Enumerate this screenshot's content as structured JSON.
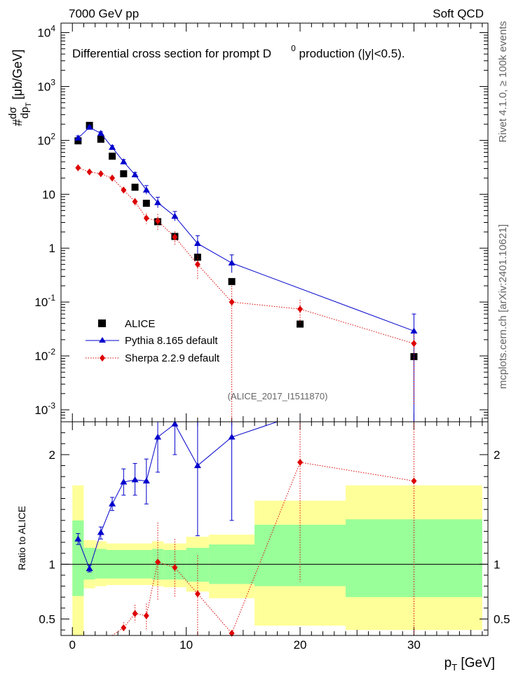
{
  "header": {
    "left": "7000 GeV pp",
    "right": "Soft QCD"
  },
  "side_labels": {
    "rivet": "Rivet 4.1.0, ≥ 100k events",
    "mcplots": "mcplots.cern.ch [arXiv:2401.10621]"
  },
  "colors": {
    "data": "#000000",
    "pythia": "#0000cc",
    "sherpa": "#dd0000",
    "band_inner": "#99ff99",
    "band_outer": "#ffff99"
  },
  "chart_data": {
    "type": "scatter",
    "title": "Differential cross section for prompt D^0 production (|y|<0.5).",
    "title_parts": {
      "before": "Differential cross section for prompt D",
      "sup": "0",
      "after": " production (|y|<0.5)."
    },
    "analysis_tag": "(ALICE_2017_I1511870)",
    "x_label": "p_T [GeV]",
    "x_label_parts": {
      "main": "p",
      "sub": "T",
      "unit": " [GeV]"
    },
    "y_label": "#dσ/dp_T [μb/GeV]",
    "xlim": [
      -1,
      36.5
    ],
    "x_ticks": [
      "0",
      "10",
      "20",
      "30"
    ],
    "main": {
      "yscale": "log",
      "ylim": [
        0.0006,
        15000
      ],
      "y_ticks": [
        {
          "value": 0.001,
          "label": "10^-3"
        },
        {
          "value": 0.01,
          "label": "10^-2"
        },
        {
          "value": 0.1,
          "label": "10^-1"
        },
        {
          "value": 1,
          "label": "1"
        },
        {
          "value": 10,
          "label": "10"
        },
        {
          "value": 100,
          "label": "10^2"
        },
        {
          "value": 1000,
          "label": "10^3"
        },
        {
          "value": 10000,
          "label": "10^4"
        }
      ],
      "series": [
        {
          "name": "ALICE",
          "style": "square",
          "x": [
            0.5,
            1.5,
            2.5,
            3.5,
            4.5,
            5.5,
            6.5,
            7.5,
            9.0,
            11.0,
            14.0,
            20.0,
            30.0
          ],
          "x_lo": [
            0,
            1,
            2,
            3,
            4,
            5,
            6,
            7,
            8,
            10,
            12,
            16,
            24
          ],
          "x_hi": [
            1,
            2,
            3,
            4,
            5,
            6,
            7,
            8,
            10,
            12,
            16,
            24,
            36
          ],
          "values": [
            98,
            190,
            105,
            51,
            24,
            13.5,
            6.8,
            3.1,
            1.65,
            0.68,
            0.24,
            0.039,
            0.0097
          ]
        },
        {
          "name": "Pythia 8.165 default",
          "style": "triangle-line",
          "x": [
            0.5,
            1.5,
            2.5,
            3.5,
            4.5,
            5.5,
            6.5,
            7.5,
            9.0,
            11.0,
            14.0,
            30.0
          ],
          "values": [
            110,
            175,
            135,
            74,
            40,
            23,
            12,
            7.0,
            3.9,
            1.22,
            0.53,
            0.029
          ],
          "err_lo": [
            100,
            165,
            125,
            68,
            36,
            20.5,
            10,
            5.6,
            3.2,
            0.78,
            0.35,
            0.0004
          ],
          "err_hi": [
            121,
            186,
            145,
            80,
            44,
            25.5,
            14.5,
            8.8,
            4.8,
            1.7,
            0.75,
            0.06
          ]
        },
        {
          "name": "Sherpa 2.2.9 default",
          "style": "diamond-dotted",
          "x": [
            0.5,
            1.5,
            2.5,
            3.5,
            4.5,
            5.5,
            6.5,
            7.5,
            9.0,
            11.0,
            14.0,
            20.0,
            30.0
          ],
          "values": [
            31,
            26,
            24,
            20,
            12,
            7.3,
            3.6,
            3.2,
            1.6,
            0.5,
            0.1,
            0.074,
            0.017
          ],
          "err_lo": [
            28.5,
            24,
            21.5,
            17.5,
            10.5,
            6.1,
            2.8,
            2.1,
            1.15,
            0.27,
            0.0006,
            0.04,
            0.0012
          ],
          "err_hi": [
            34,
            28.5,
            26.5,
            22.5,
            13.5,
            8.5,
            4.4,
            4.3,
            2.05,
            0.73,
            0.2,
            0.11,
            0.025
          ]
        }
      ]
    },
    "ratio": {
      "ylabel": "Ratio to ALICE",
      "ylim": [
        0.35,
        2.3
      ],
      "y_ticks": [
        {
          "value": 0.5,
          "label": "0.5"
        },
        {
          "value": 1,
          "label": "1"
        },
        {
          "value": 2,
          "label": "2"
        }
      ],
      "band_bins": [
        {
          "lo": 0,
          "hi": 1,
          "inner": [
            0.71,
            1.4
          ],
          "outer": [
            0.35,
            1.72
          ]
        },
        {
          "lo": 1,
          "hi": 2,
          "inner": [
            0.86,
            1.15
          ],
          "outer": [
            0.78,
            1.22
          ]
        },
        {
          "lo": 2,
          "hi": 3,
          "inner": [
            0.87,
            1.14
          ],
          "outer": [
            0.8,
            1.21
          ]
        },
        {
          "lo": 3,
          "hi": 7,
          "inner": [
            0.87,
            1.13
          ],
          "outer": [
            0.81,
            1.19
          ]
        },
        {
          "lo": 7,
          "hi": 8,
          "inner": [
            0.86,
            1.14
          ],
          "outer": [
            0.8,
            1.21
          ]
        },
        {
          "lo": 8,
          "hi": 10,
          "inner": [
            0.86,
            1.13
          ],
          "outer": [
            0.79,
            1.19
          ]
        },
        {
          "lo": 10,
          "hi": 12,
          "inner": [
            0.84,
            1.15
          ],
          "outer": [
            0.75,
            1.25
          ]
        },
        {
          "lo": 12,
          "hi": 16,
          "inner": [
            0.82,
            1.18
          ],
          "outer": [
            0.69,
            1.27
          ]
        },
        {
          "lo": 16,
          "hi": 24,
          "inner": [
            0.8,
            1.36
          ],
          "outer": [
            0.44,
            1.58
          ]
        },
        {
          "lo": 24,
          "hi": 36,
          "inner": [
            0.7,
            1.41
          ],
          "outer": [
            0.4,
            1.72
          ]
        }
      ],
      "pythia": {
        "x": [
          0.5,
          1.5,
          2.5,
          3.5,
          4.5,
          5.5,
          6.5,
          7.5,
          9.0,
          11.0,
          14.0,
          18.0
        ],
        "values": [
          1.23,
          0.96,
          1.29,
          1.55,
          1.75,
          1.77,
          1.76,
          2.16,
          2.28,
          1.9,
          2.16,
          2.35
        ],
        "err_lo": [
          1.18,
          0.93,
          1.23,
          1.49,
          1.63,
          1.63,
          1.55,
          1.84,
          2.0,
          1.26,
          1.4,
          2.35
        ],
        "err_hi": [
          1.28,
          0.99,
          1.34,
          1.61,
          1.87,
          1.92,
          1.96,
          2.35,
          2.35,
          2.35,
          2.35,
          2.35
        ]
      },
      "sherpa": {
        "x": [
          4.5,
          5.5,
          6.5,
          7.5,
          9.0,
          11.0,
          14.0,
          20.0,
          30.0
        ],
        "values": [
          0.42,
          0.55,
          0.53,
          1.02,
          0.97,
          0.73,
          0.37,
          1.93,
          1.76
        ],
        "err_lo": [
          0.38,
          0.47,
          0.4,
          0.67,
          0.7,
          0.35,
          0.35,
          0.84,
          0.35
        ],
        "err_hi": [
          0.47,
          0.63,
          0.64,
          1.38,
          1.23,
          1.08,
          0.39,
          2.32,
          2.35
        ]
      }
    }
  }
}
